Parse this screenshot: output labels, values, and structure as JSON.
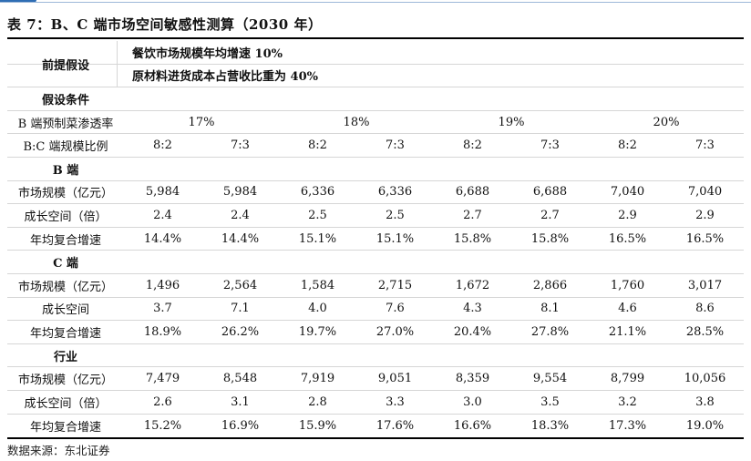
{
  "title": "表 7：B、C 端市场空间敏感性测算（2030 年）",
  "premise": {
    "label": "前提假设",
    "items": [
      "餐饮市场规模年均增速 10%",
      "原材料进货成本占营收比重为 40%"
    ]
  },
  "conditions": {
    "label": "假设条件",
    "penetration_label": "B 端预制菜渗透率",
    "penetration_values": [
      "17%",
      "18%",
      "19%",
      "20%"
    ],
    "ratio_label": "B:C 端规模比例",
    "ratio_values": [
      "8:2",
      "7:3",
      "8:2",
      "7:3",
      "8:2",
      "7:3",
      "8:2",
      "7:3"
    ]
  },
  "sections": [
    {
      "header": "B 端",
      "rows": [
        {
          "label": "市场规模（亿元）",
          "values": [
            "5,984",
            "5,984",
            "6,336",
            "6,336",
            "6,688",
            "6,688",
            "7,040",
            "7,040"
          ]
        },
        {
          "label": "成长空间（倍）",
          "values": [
            "2.4",
            "2.4",
            "2.5",
            "2.5",
            "2.7",
            "2.7",
            "2.9",
            "2.9"
          ]
        },
        {
          "label": "年均复合增速",
          "values": [
            "14.4%",
            "14.4%",
            "15.1%",
            "15.1%",
            "15.8%",
            "15.8%",
            "16.5%",
            "16.5%"
          ]
        }
      ]
    },
    {
      "header": "C 端",
      "rows": [
        {
          "label": "市场规模（亿元）",
          "values": [
            "1,496",
            "2,564",
            "1,584",
            "2,715",
            "1,672",
            "2,866",
            "1,760",
            "3,017"
          ]
        },
        {
          "label": "成长空间",
          "values": [
            "3.7",
            "7.1",
            "4.0",
            "7.6",
            "4.3",
            "8.1",
            "4.6",
            "8.6"
          ]
        },
        {
          "label": "年均复合增速",
          "values": [
            "18.9%",
            "26.2%",
            "19.7%",
            "27.0%",
            "20.4%",
            "27.8%",
            "21.1%",
            "28.5%"
          ]
        }
      ]
    },
    {
      "header": "行业",
      "rows": [
        {
          "label": "市场规模（亿元）",
          "values": [
            "7,479",
            "8,548",
            "7,919",
            "9,051",
            "8,359",
            "9,554",
            "8,799",
            "10,056"
          ]
        },
        {
          "label": "成长空间（倍）",
          "values": [
            "2.6",
            "3.1",
            "2.8",
            "3.3",
            "3.0",
            "3.5",
            "3.2",
            "3.8"
          ]
        },
        {
          "label": "年均复合增速",
          "values": [
            "15.2%",
            "16.9%",
            "15.9%",
            "17.6%",
            "16.6%",
            "18.3%",
            "17.3%",
            "19.0%"
          ]
        }
      ]
    }
  ],
  "source": "数据来源：东北证券"
}
